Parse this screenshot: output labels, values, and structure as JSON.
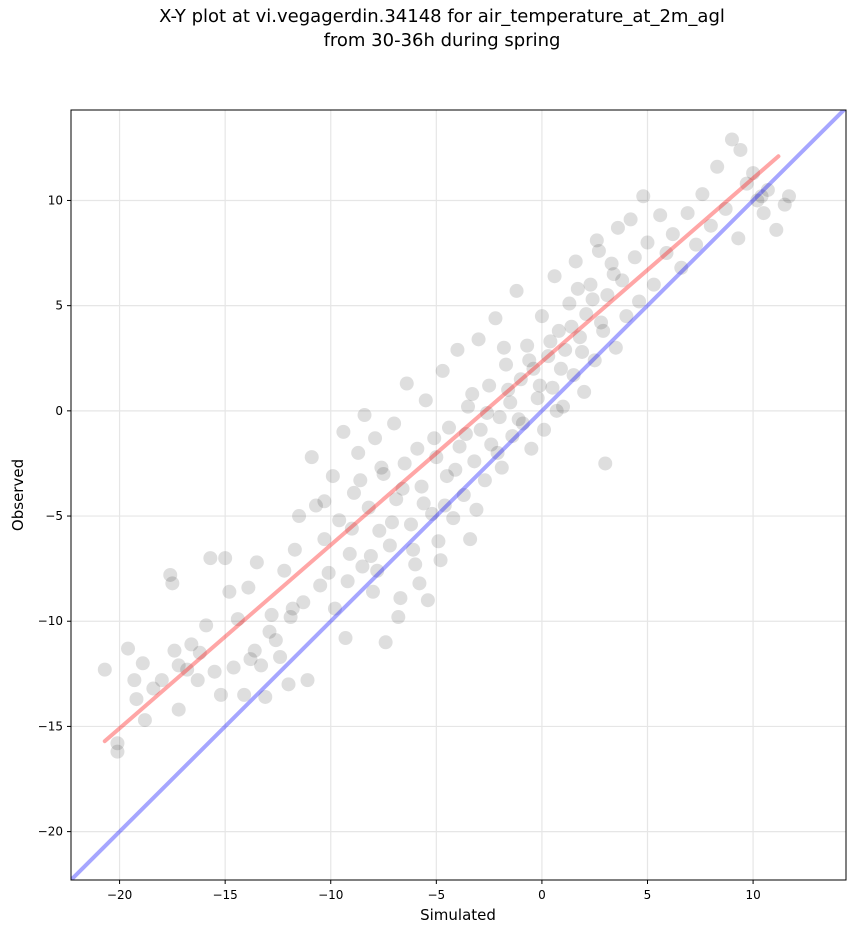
{
  "chart_data": {
    "type": "scatter",
    "title_line1": "X-Y plot at vi.vegagerdin.34148 for air_temperature_at_2m_agl",
    "title_line2": "from 30-36h during spring",
    "xlabel": "Simulated",
    "ylabel": "Observed",
    "xlim": [
      -22.3,
      14.4
    ],
    "ylim": [
      -22.3,
      14.3
    ],
    "xticks": [
      -20,
      -15,
      -10,
      -5,
      0,
      5,
      10
    ],
    "yticks": [
      -20,
      -15,
      -10,
      -5,
      0,
      5,
      10
    ],
    "grid": true,
    "colors": {
      "points": "#000000",
      "fit_line": "#ff0000",
      "identity_line": "#0000ff"
    },
    "fit_line": {
      "x": [
        -20.7,
        11.2
      ],
      "y": [
        -15.7,
        12.1
      ]
    },
    "identity_line": {
      "x": [
        -22.3,
        14.4
      ],
      "y": [
        -22.3,
        14.4
      ]
    },
    "series": [
      {
        "points": [
          [
            -20.7,
            -12.3
          ],
          [
            -20.1,
            -16.2
          ],
          [
            -20.1,
            -15.8
          ],
          [
            -19.6,
            -11.3
          ],
          [
            -19.3,
            -12.8
          ],
          [
            -19.2,
            -13.7
          ],
          [
            -18.9,
            -12.0
          ],
          [
            -18.8,
            -14.7
          ],
          [
            -18.4,
            -13.2
          ],
          [
            -18.0,
            -12.8
          ],
          [
            -17.6,
            -7.8
          ],
          [
            -17.5,
            -8.2
          ],
          [
            -17.4,
            -11.4
          ],
          [
            -17.2,
            -12.1
          ],
          [
            -17.2,
            -14.2
          ],
          [
            -16.8,
            -12.3
          ],
          [
            -16.6,
            -11.1
          ],
          [
            -16.3,
            -12.8
          ],
          [
            -16.2,
            -11.5
          ],
          [
            -15.9,
            -10.2
          ],
          [
            -15.7,
            -7.0
          ],
          [
            -15.5,
            -12.4
          ],
          [
            -15.2,
            -13.5
          ],
          [
            -15.0,
            -7.0
          ],
          [
            -14.8,
            -8.6
          ],
          [
            -14.6,
            -12.2
          ],
          [
            -14.4,
            -9.9
          ],
          [
            -14.1,
            -13.5
          ],
          [
            -13.9,
            -8.4
          ],
          [
            -13.6,
            -11.4
          ],
          [
            -13.5,
            -7.2
          ],
          [
            -13.3,
            -12.1
          ],
          [
            -13.1,
            -13.6
          ],
          [
            -12.8,
            -9.7
          ],
          [
            -12.6,
            -10.9
          ],
          [
            -12.4,
            -11.7
          ],
          [
            -12.2,
            -7.6
          ],
          [
            -12.0,
            -13.0
          ],
          [
            -11.8,
            -9.4
          ],
          [
            -11.7,
            -6.6
          ],
          [
            -11.5,
            -5.0
          ],
          [
            -11.3,
            -9.1
          ],
          [
            -11.1,
            -12.8
          ],
          [
            -10.9,
            -2.2
          ],
          [
            -10.7,
            -4.5
          ],
          [
            -10.5,
            -8.3
          ],
          [
            -10.3,
            -6.1
          ],
          [
            -10.1,
            -7.7
          ],
          [
            -9.9,
            -3.1
          ],
          [
            -9.8,
            -9.4
          ],
          [
            -9.6,
            -5.2
          ],
          [
            -9.4,
            -1.0
          ],
          [
            -9.3,
            -10.8
          ],
          [
            -9.1,
            -6.8
          ],
          [
            -8.9,
            -3.9
          ],
          [
            -8.7,
            -2.0
          ],
          [
            -8.5,
            -7.4
          ],
          [
            -8.4,
            -0.2
          ],
          [
            -8.2,
            -4.6
          ],
          [
            -8.0,
            -8.6
          ],
          [
            -7.9,
            -1.3
          ],
          [
            -7.7,
            -5.7
          ],
          [
            -7.5,
            -3.0
          ],
          [
            -7.4,
            -11.0
          ],
          [
            -7.2,
            -6.4
          ],
          [
            -7.0,
            -0.6
          ],
          [
            -6.9,
            -4.2
          ],
          [
            -6.7,
            -8.9
          ],
          [
            -6.5,
            -2.5
          ],
          [
            -6.4,
            1.3
          ],
          [
            -6.2,
            -5.4
          ],
          [
            -6.0,
            -7.3
          ],
          [
            -5.9,
            -1.8
          ],
          [
            -5.7,
            -3.6
          ],
          [
            -5.5,
            0.5
          ],
          [
            -5.4,
            -9.0
          ],
          [
            -5.2,
            -4.9
          ],
          [
            -5.0,
            -2.2
          ],
          [
            -4.9,
            -6.2
          ],
          [
            -4.7,
            1.9
          ],
          [
            -4.5,
            -3.1
          ],
          [
            -4.4,
            -0.8
          ],
          [
            -4.2,
            -5.1
          ],
          [
            -4.0,
            2.9
          ],
          [
            -3.9,
            -1.7
          ],
          [
            -3.7,
            -4.0
          ],
          [
            -3.5,
            0.2
          ],
          [
            -3.4,
            -6.1
          ],
          [
            -3.2,
            -2.4
          ],
          [
            -3.0,
            3.4
          ],
          [
            -2.9,
            -0.9
          ],
          [
            -2.7,
            -3.3
          ],
          [
            -2.5,
            1.2
          ],
          [
            -2.4,
            -1.6
          ],
          [
            -2.2,
            4.4
          ],
          [
            -2.0,
            -0.3
          ],
          [
            -1.9,
            -2.7
          ],
          [
            -1.7,
            2.2
          ],
          [
            -1.5,
            0.4
          ],
          [
            -1.4,
            -1.2
          ],
          [
            -1.2,
            5.7
          ],
          [
            -1.0,
            1.5
          ],
          [
            -0.9,
            -0.6
          ],
          [
            -0.7,
            3.1
          ],
          [
            -0.5,
            -1.8
          ],
          [
            -0.4,
            2.0
          ],
          [
            -0.2,
            0.6
          ],
          [
            0.0,
            4.5
          ],
          [
            0.1,
            -0.9
          ],
          [
            0.3,
            2.6
          ],
          [
            0.5,
            1.1
          ],
          [
            0.6,
            6.4
          ],
          [
            0.8,
            3.8
          ],
          [
            1.0,
            0.2
          ],
          [
            1.1,
            2.9
          ],
          [
            1.3,
            5.1
          ],
          [
            1.5,
            1.7
          ],
          [
            1.6,
            7.1
          ],
          [
            1.8,
            3.5
          ],
          [
            2.0,
            0.9
          ],
          [
            2.1,
            4.6
          ],
          [
            2.3,
            6.0
          ],
          [
            2.5,
            2.4
          ],
          [
            2.6,
            8.1
          ],
          [
            2.8,
            4.2
          ],
          [
            3.0,
            -2.5
          ],
          [
            3.1,
            5.5
          ],
          [
            3.3,
            7.0
          ],
          [
            3.5,
            3.0
          ],
          [
            3.6,
            8.7
          ],
          [
            3.8,
            6.2
          ],
          [
            4.0,
            4.5
          ],
          [
            4.2,
            9.1
          ],
          [
            4.4,
            7.3
          ],
          [
            4.6,
            5.2
          ],
          [
            4.8,
            10.2
          ],
          [
            5.0,
            8.0
          ],
          [
            5.3,
            6.0
          ],
          [
            5.6,
            9.3
          ],
          [
            5.9,
            7.5
          ],
          [
            6.2,
            8.4
          ],
          [
            6.6,
            6.8
          ],
          [
            6.9,
            9.4
          ],
          [
            7.3,
            7.9
          ],
          [
            7.6,
            10.3
          ],
          [
            8.0,
            8.8
          ],
          [
            8.3,
            11.6
          ],
          [
            8.7,
            9.6
          ],
          [
            9.0,
            12.9
          ],
          [
            9.3,
            8.2
          ],
          [
            9.7,
            10.8
          ],
          [
            10.0,
            11.3
          ],
          [
            10.2,
            10.0
          ],
          [
            10.5,
            9.4
          ],
          [
            10.7,
            10.5
          ],
          [
            11.1,
            8.6
          ],
          [
            11.5,
            9.8
          ],
          [
            11.7,
            10.2
          ],
          [
            9.4,
            12.4
          ],
          [
            10.4,
            10.2
          ],
          [
            -7.8,
            -7.6
          ],
          [
            -7.1,
            -5.3
          ],
          [
            -6.6,
            -3.7
          ],
          [
            -6.1,
            -6.6
          ],
          [
            -5.6,
            -4.4
          ],
          [
            -5.1,
            -1.3
          ],
          [
            -4.6,
            -4.5
          ],
          [
            -4.1,
            -2.8
          ],
          [
            -3.6,
            -1.1
          ],
          [
            -3.1,
            -4.7
          ],
          [
            -2.6,
            -0.1
          ],
          [
            -2.1,
            -2.0
          ],
          [
            -1.6,
            1.0
          ],
          [
            -1.1,
            -0.4
          ],
          [
            -0.6,
            2.4
          ],
          [
            -0.1,
            1.2
          ],
          [
            0.4,
            3.3
          ],
          [
            0.9,
            2.0
          ],
          [
            1.4,
            4.0
          ],
          [
            1.9,
            2.8
          ],
          [
            2.4,
            5.3
          ],
          [
            2.9,
            3.8
          ],
          [
            3.4,
            6.5
          ],
          [
            -9.0,
            -5.6
          ],
          [
            -8.6,
            -3.3
          ],
          [
            -8.1,
            -6.9
          ],
          [
            -7.6,
            -2.7
          ],
          [
            -11.9,
            -9.8
          ],
          [
            -12.9,
            -10.5
          ],
          [
            -13.8,
            -11.8
          ],
          [
            -10.3,
            -4.3
          ],
          [
            -9.2,
            -8.1
          ],
          [
            -3.3,
            0.8
          ],
          [
            -1.8,
            3.0
          ],
          [
            0.7,
            0.0
          ],
          [
            1.7,
            5.8
          ],
          [
            2.7,
            7.6
          ],
          [
            -4.8,
            -7.1
          ],
          [
            -5.8,
            -8.2
          ],
          [
            -6.8,
            -9.8
          ]
        ]
      }
    ]
  }
}
